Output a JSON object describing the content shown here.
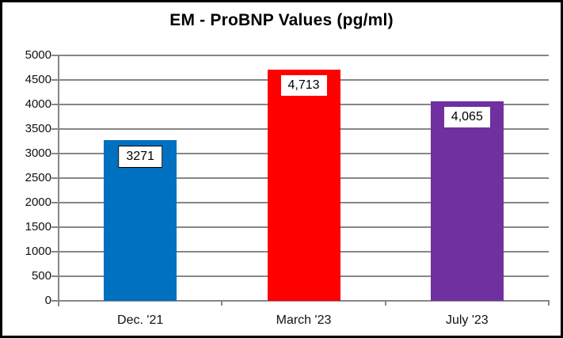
{
  "chart_data": {
    "type": "bar",
    "title": "EM - ProBNP Values (pg/ml)",
    "categories": [
      "Dec. '21",
      "March '23",
      "July '23"
    ],
    "values": [
      3271,
      4713,
      4065
    ],
    "value_labels": [
      "3271",
      "4,713",
      "4,065"
    ],
    "bar_colors": [
      "#0070C0",
      "#FF0000",
      "#7030A0"
    ],
    "value_label_boxes": [
      {
        "background": "#FFFFFF",
        "border": true
      },
      {
        "background": "#FFFFFF",
        "border": false
      },
      {
        "background": "#FFFFFF",
        "border": false
      }
    ],
    "xlabel": "",
    "ylabel": "",
    "ylim": [
      0,
      5000
    ],
    "ytick_step": 500,
    "yticks": [
      0,
      500,
      1000,
      1500,
      2000,
      2500,
      3000,
      3500,
      4000,
      4500,
      5000
    ],
    "grid": true,
    "legend": false,
    "gridline_color": "#868686",
    "axis_color": "#868686",
    "frame_border_color": "#000000",
    "background_color": "#FFFFFF"
  }
}
